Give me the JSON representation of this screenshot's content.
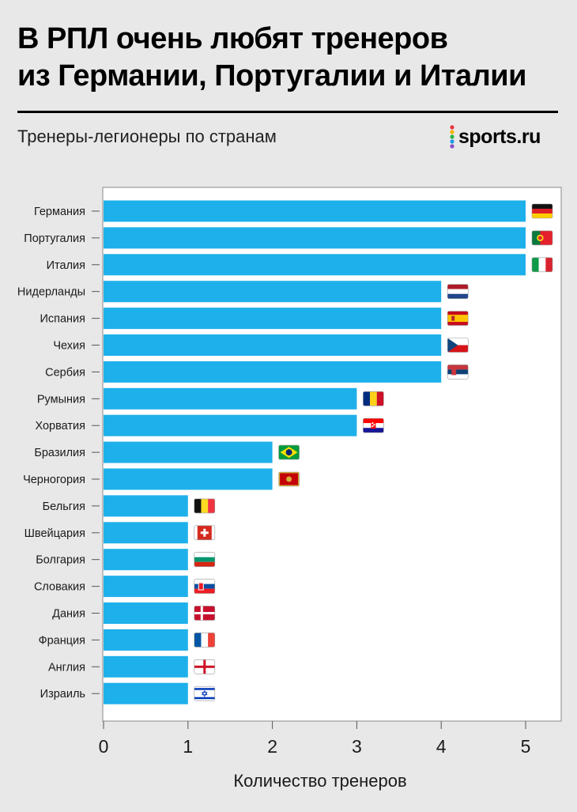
{
  "header": {
    "title_line1": "В РПЛ очень любят тренеров",
    "title_line2": "из Германии, Португалии и Италии",
    "subtitle": "Тренеры-легионеры по странам",
    "logo_text": "sports.ru"
  },
  "colors": {
    "bar": "#1eb0ea",
    "background": "#e8e8e8",
    "plot_background": "#ffffff",
    "logo_dots": [
      "#e7343f",
      "#f7b500",
      "#2fb24c",
      "#1c9be6",
      "#8b4fc9"
    ]
  },
  "chart_data": {
    "type": "bar",
    "orientation": "horizontal",
    "title": "В РПЛ очень любят тренеров из Германии, Португалии и Италии",
    "subtitle": "Тренеры-легионеры по странам",
    "xlabel": "Количество тренеров",
    "ylabel": "",
    "xlim": [
      0,
      5.4
    ],
    "xticks": [
      0,
      1,
      2,
      3,
      4,
      5
    ],
    "grid": false,
    "legend": "none",
    "categories": [
      "Германия",
      "Португалия",
      "Италия",
      "Нидерланды",
      "Испания",
      "Чехия",
      "Сербия",
      "Румыния",
      "Хорватия",
      "Бразилия",
      "Черногория",
      "Бельгия",
      "Швейцария",
      "Болгария",
      "Словакия",
      "Дания",
      "Франция",
      "Англия",
      "Израиль"
    ],
    "values": [
      5,
      5,
      5,
      4,
      4,
      4,
      4,
      3,
      3,
      2,
      2,
      1,
      1,
      1,
      1,
      1,
      1,
      1,
      1
    ],
    "flags": [
      "germany-flag",
      "portugal-flag",
      "italy-flag",
      "netherlands-flag",
      "spain-flag",
      "czechia-flag",
      "serbia-flag",
      "romania-flag",
      "croatia-flag",
      "brazil-flag",
      "montenegro-flag",
      "belgium-flag",
      "switzerland-flag",
      "bulgaria-flag",
      "slovakia-flag",
      "denmark-flag",
      "france-flag",
      "england-flag",
      "israel-flag"
    ]
  }
}
